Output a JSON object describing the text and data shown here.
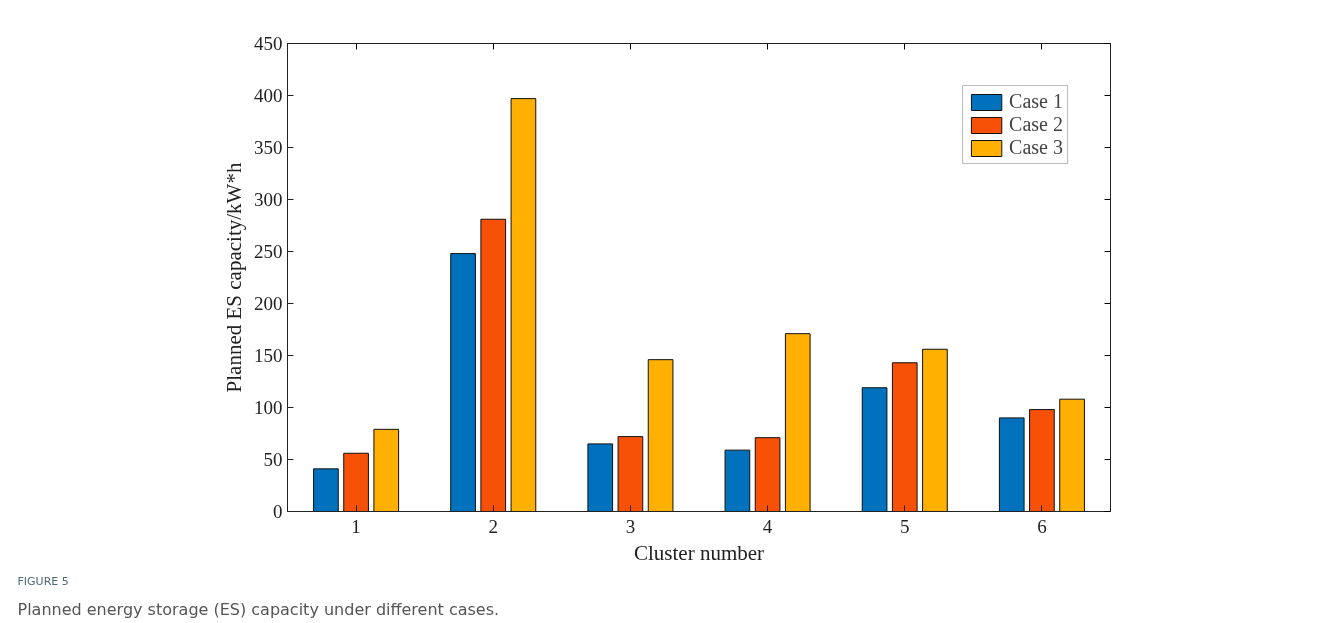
{
  "chart_data": {
    "type": "bar",
    "xlabel": "Cluster number",
    "ylabel": "Planned ES capacity/kW*h",
    "categories": [
      "1",
      "2",
      "3",
      "4",
      "5",
      "6"
    ],
    "series": [
      {
        "name": "Case 1",
        "color": "#0072bd",
        "values": [
          41,
          248,
          65,
          59,
          119,
          90
        ]
      },
      {
        "name": "Case 2",
        "color": "#f75108",
        "values": [
          56,
          281,
          72,
          71,
          143,
          98
        ]
      },
      {
        "name": "Case 3",
        "color": "#ffb000",
        "values": [
          79,
          397,
          146,
          171,
          156,
          108
        ]
      }
    ],
    "ylim": [
      0,
      450
    ],
    "yticks": [
      0,
      50,
      100,
      150,
      200,
      250,
      300,
      350,
      400,
      450
    ],
    "legend": "top right",
    "grid": false,
    "annotations": [
      "FIGURE 5",
      "Planned energy storage (ES) capacity under different cases."
    ]
  }
}
